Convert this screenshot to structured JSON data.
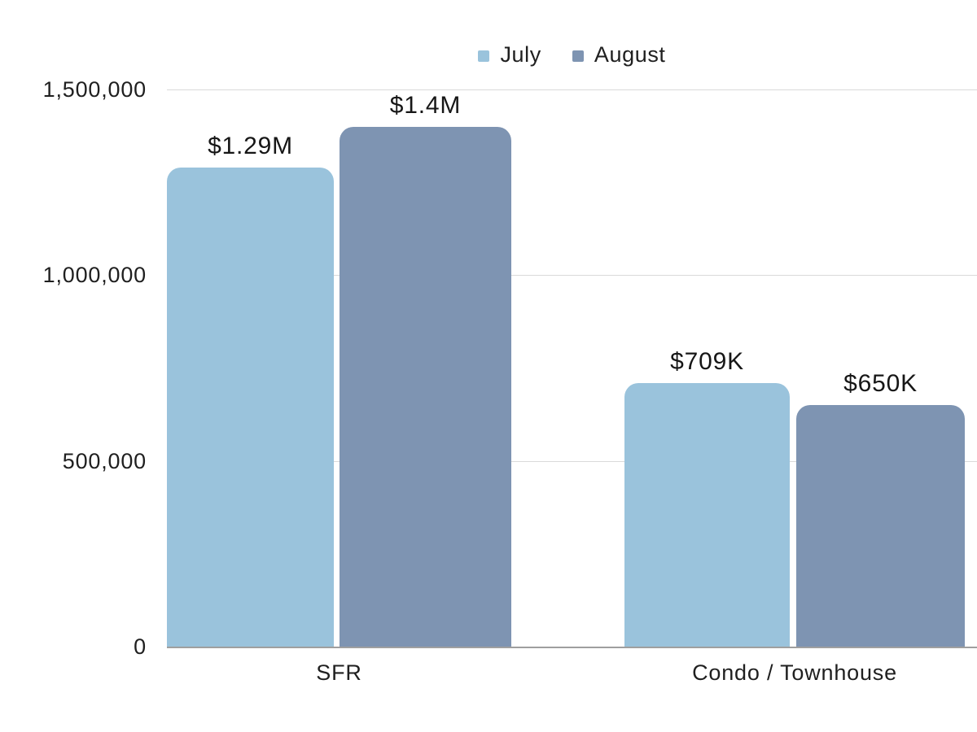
{
  "chart_data": {
    "type": "bar",
    "categories": [
      "SFR",
      "Condo / Townhouse"
    ],
    "series": [
      {
        "name": "July",
        "color": "#9ac3dc",
        "values": [
          1290000,
          709000
        ],
        "labels": [
          "$1.29M",
          "$709K"
        ]
      },
      {
        "name": "August",
        "color": "#7e94b2",
        "values": [
          1400000,
          650000
        ],
        "labels": [
          "$1.4M",
          "$650K"
        ]
      }
    ],
    "title": "",
    "xlabel": "",
    "ylabel": "",
    "ylim": [
      0,
      1500000
    ],
    "yticks": [
      "1,500,000",
      "1,000,000",
      "500,000",
      "0"
    ],
    "grid": "horizontal",
    "legend_position": "top-center",
    "colors": {
      "gridline": "#dadada",
      "axis_line": "#9f9f9f",
      "text": "#1f1f1f"
    }
  }
}
